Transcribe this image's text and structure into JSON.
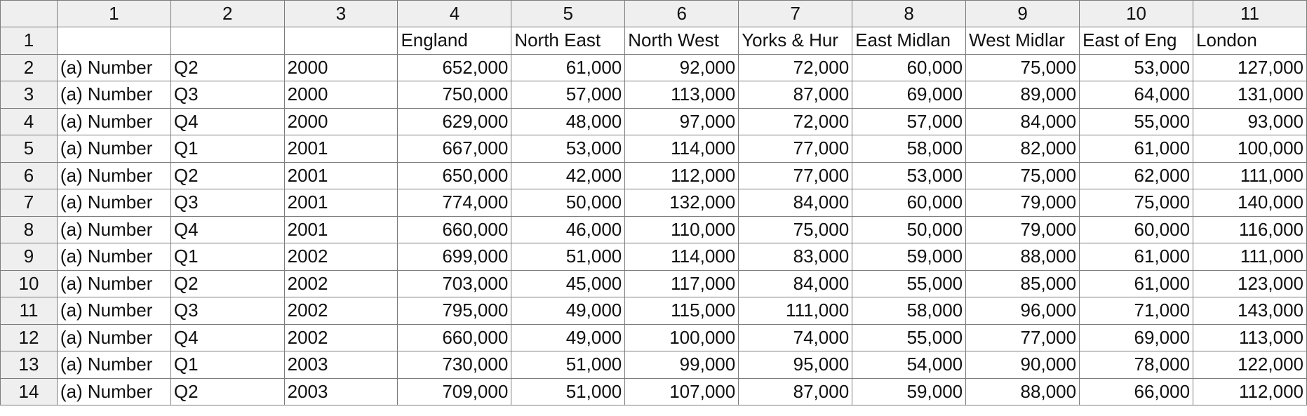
{
  "column_headers": [
    "1",
    "2",
    "3",
    "4",
    "5",
    "6",
    "7",
    "8",
    "9",
    "10",
    "11"
  ],
  "rows": [
    {
      "row": "1",
      "cells": [
        "",
        "",
        "",
        "England",
        "North East",
        "North West",
        "Yorks & Hur",
        "East Midlan",
        "West Midlar",
        "East of Eng",
        "London"
      ]
    },
    {
      "row": "2",
      "cells": [
        "(a) Number",
        "Q2",
        "2000",
        "652,000",
        "61,000",
        "92,000",
        "72,000",
        "60,000",
        "75,000",
        "53,000",
        "127,000"
      ]
    },
    {
      "row": "3",
      "cells": [
        "(a) Number",
        "Q3",
        "2000",
        "750,000",
        "57,000",
        "113,000",
        "87,000",
        "69,000",
        "89,000",
        "64,000",
        "131,000"
      ]
    },
    {
      "row": "4",
      "cells": [
        "(a) Number",
        "Q4",
        "2000",
        "629,000",
        "48,000",
        "97,000",
        "72,000",
        "57,000",
        "84,000",
        "55,000",
        "93,000"
      ]
    },
    {
      "row": "5",
      "cells": [
        "(a) Number",
        "Q1",
        "2001",
        "667,000",
        "53,000",
        "114,000",
        "77,000",
        "58,000",
        "82,000",
        "61,000",
        "100,000"
      ]
    },
    {
      "row": "6",
      "cells": [
        "(a) Number",
        "Q2",
        "2001",
        "650,000",
        "42,000",
        "112,000",
        "77,000",
        "53,000",
        "75,000",
        "62,000",
        "111,000"
      ]
    },
    {
      "row": "7",
      "cells": [
        "(a) Number",
        "Q3",
        "2001",
        "774,000",
        "50,000",
        "132,000",
        "84,000",
        "60,000",
        "79,000",
        "75,000",
        "140,000"
      ]
    },
    {
      "row": "8",
      "cells": [
        "(a) Number",
        "Q4",
        "2001",
        "660,000",
        "46,000",
        "110,000",
        "75,000",
        "50,000",
        "79,000",
        "60,000",
        "116,000"
      ]
    },
    {
      "row": "9",
      "cells": [
        "(a) Number",
        "Q1",
        "2002",
        "699,000",
        "51,000",
        "114,000",
        "83,000",
        "59,000",
        "88,000",
        "61,000",
        "111,000"
      ]
    },
    {
      "row": "10",
      "cells": [
        "(a) Number",
        "Q2",
        "2002",
        "703,000",
        "45,000",
        "117,000",
        "84,000",
        "55,000",
        "85,000",
        "61,000",
        "123,000"
      ]
    },
    {
      "row": "11",
      "cells": [
        "(a) Number",
        "Q3",
        "2002",
        "795,000",
        "49,000",
        "115,000",
        "111,000",
        "58,000",
        "96,000",
        "71,000",
        "143,000"
      ]
    },
    {
      "row": "12",
      "cells": [
        "(a) Number",
        "Q4",
        "2002",
        "660,000",
        "49,000",
        "100,000",
        "74,000",
        "55,000",
        "77,000",
        "69,000",
        "113,000"
      ]
    },
    {
      "row": "13",
      "cells": [
        "(a) Number",
        "Q1",
        "2003",
        "730,000",
        "51,000",
        "99,000",
        "95,000",
        "54,000",
        "90,000",
        "78,000",
        "122,000"
      ]
    },
    {
      "row": "14",
      "cells": [
        "(a) Number",
        "Q2",
        "2003",
        "709,000",
        "51,000",
        "107,000",
        "87,000",
        "59,000",
        "88,000",
        "66,000",
        "112,000"
      ]
    }
  ]
}
